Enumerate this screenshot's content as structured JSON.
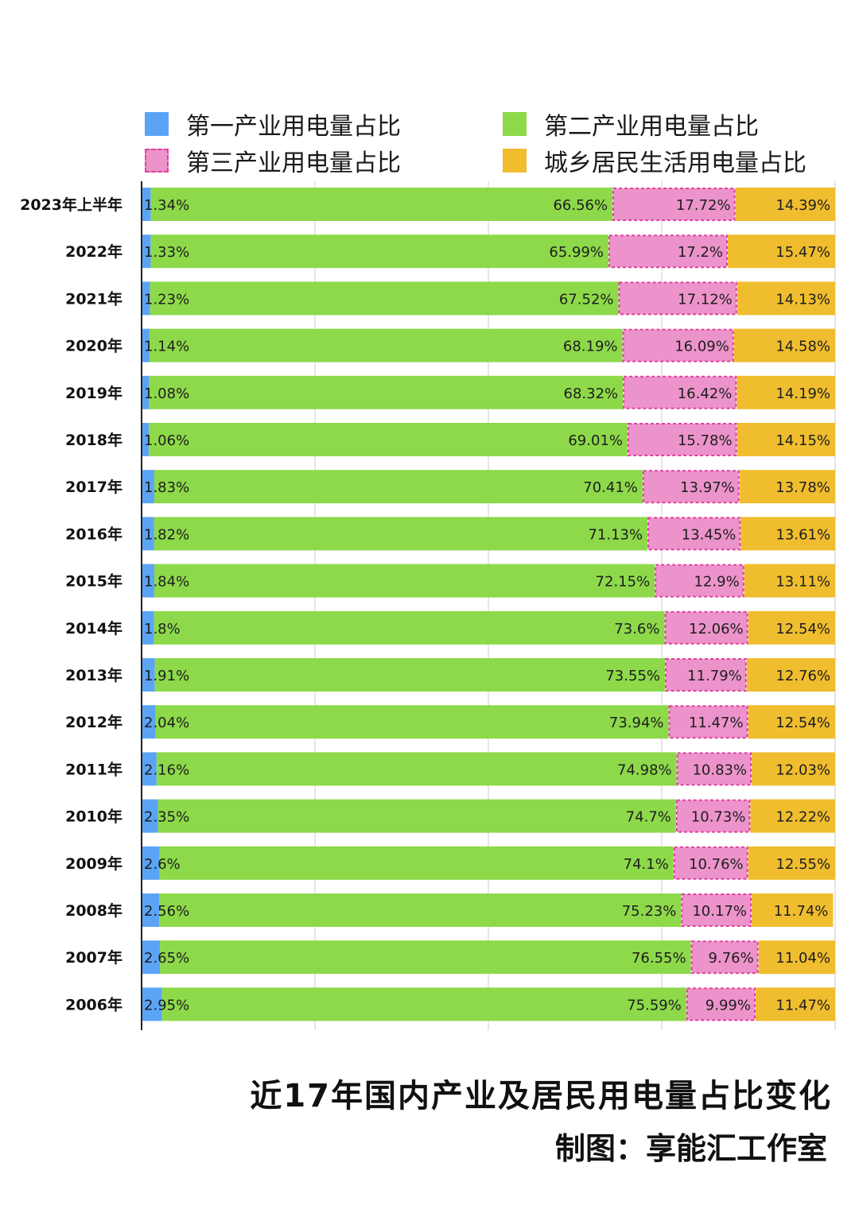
{
  "colors": {
    "primary": "#5ba4f5",
    "secondary": "#8dd94a",
    "tertiary": "#ec93cb",
    "tertiary_border": "#e2409d",
    "residential": "#efbd2e",
    "grid": "#d6d6d6",
    "axis": "#222222"
  },
  "legend": {
    "primary": "第一产业用电量占比",
    "secondary": "第二产业用电量占比",
    "tertiary": "第三产业用电量占比",
    "residential": "城乡居民生活用电量占比"
  },
  "footer": {
    "title": "近17年国内产业及居民用电量占比变化",
    "credit": "制图：享能汇工作室"
  },
  "chart_data": {
    "type": "bar",
    "orientation": "horizontal",
    "stacked": true,
    "title": "近17年国内产业及居民用电量占比变化",
    "xlim": [
      0,
      100
    ],
    "grid": true,
    "legend_position": "top",
    "categories": [
      "2023年上半年",
      "2022年",
      "2021年",
      "2020年",
      "2019年",
      "2018年",
      "2017年",
      "2016年",
      "2015年",
      "2014年",
      "2013年",
      "2012年",
      "2011年",
      "2010年",
      "2009年",
      "2008年",
      "2007年",
      "2006年"
    ],
    "series": [
      {
        "name": "第一产业用电量占比",
        "values": [
          1.34,
          1.33,
          1.23,
          1.14,
          1.08,
          1.06,
          1.83,
          1.82,
          1.84,
          1.8,
          1.91,
          2.04,
          2.16,
          2.35,
          2.6,
          2.56,
          2.65,
          2.95
        ]
      },
      {
        "name": "第二产业用电量占比",
        "values": [
          66.56,
          65.99,
          67.52,
          68.19,
          68.32,
          69.01,
          70.41,
          71.13,
          72.15,
          73.6,
          73.55,
          73.94,
          74.98,
          74.7,
          74.1,
          75.23,
          76.55,
          75.59
        ]
      },
      {
        "name": "第三产业用电量占比",
        "values": [
          17.72,
          17.2,
          17.12,
          16.09,
          16.42,
          15.78,
          13.97,
          13.45,
          12.9,
          12.06,
          11.79,
          11.47,
          10.83,
          10.73,
          10.76,
          10.17,
          9.76,
          9.99
        ]
      },
      {
        "name": "城乡居民生活用电量占比",
        "values": [
          14.39,
          15.47,
          14.13,
          14.58,
          14.19,
          14.15,
          13.78,
          13.61,
          13.11,
          12.54,
          12.76,
          12.54,
          12.03,
          12.22,
          12.55,
          11.74,
          11.04,
          11.47
        ]
      }
    ]
  }
}
